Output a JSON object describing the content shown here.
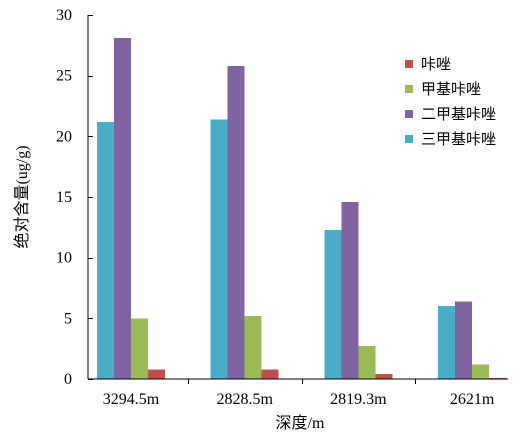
{
  "chart_data": {
    "type": "bar",
    "categories": [
      "3294.5m",
      "2828.5m",
      "2819.3m",
      "2621m"
    ],
    "series": [
      {
        "name": "咔唑",
        "color": "#C0504D",
        "values": [
          0.8,
          0.8,
          0.4,
          0.1
        ]
      },
      {
        "name": "甲基咔唑",
        "color": "#9BBB59",
        "values": [
          5.0,
          5.2,
          2.7,
          1.2
        ]
      },
      {
        "name": "二甲基咔唑",
        "color": "#8064A2",
        "values": [
          28.1,
          25.8,
          14.6,
          6.4
        ]
      },
      {
        "name": "三甲基咔唑",
        "color": "#4BACC6",
        "values": [
          21.2,
          21.4,
          12.3,
          6.0
        ]
      }
    ],
    "xlabel": "深度/m",
    "ylabel": "绝对含量(ug/g)",
    "ylim": [
      0,
      30
    ],
    "yticks": [
      0,
      5,
      10,
      15,
      20,
      25,
      30
    ],
    "grid": false,
    "legend_position": "right"
  }
}
